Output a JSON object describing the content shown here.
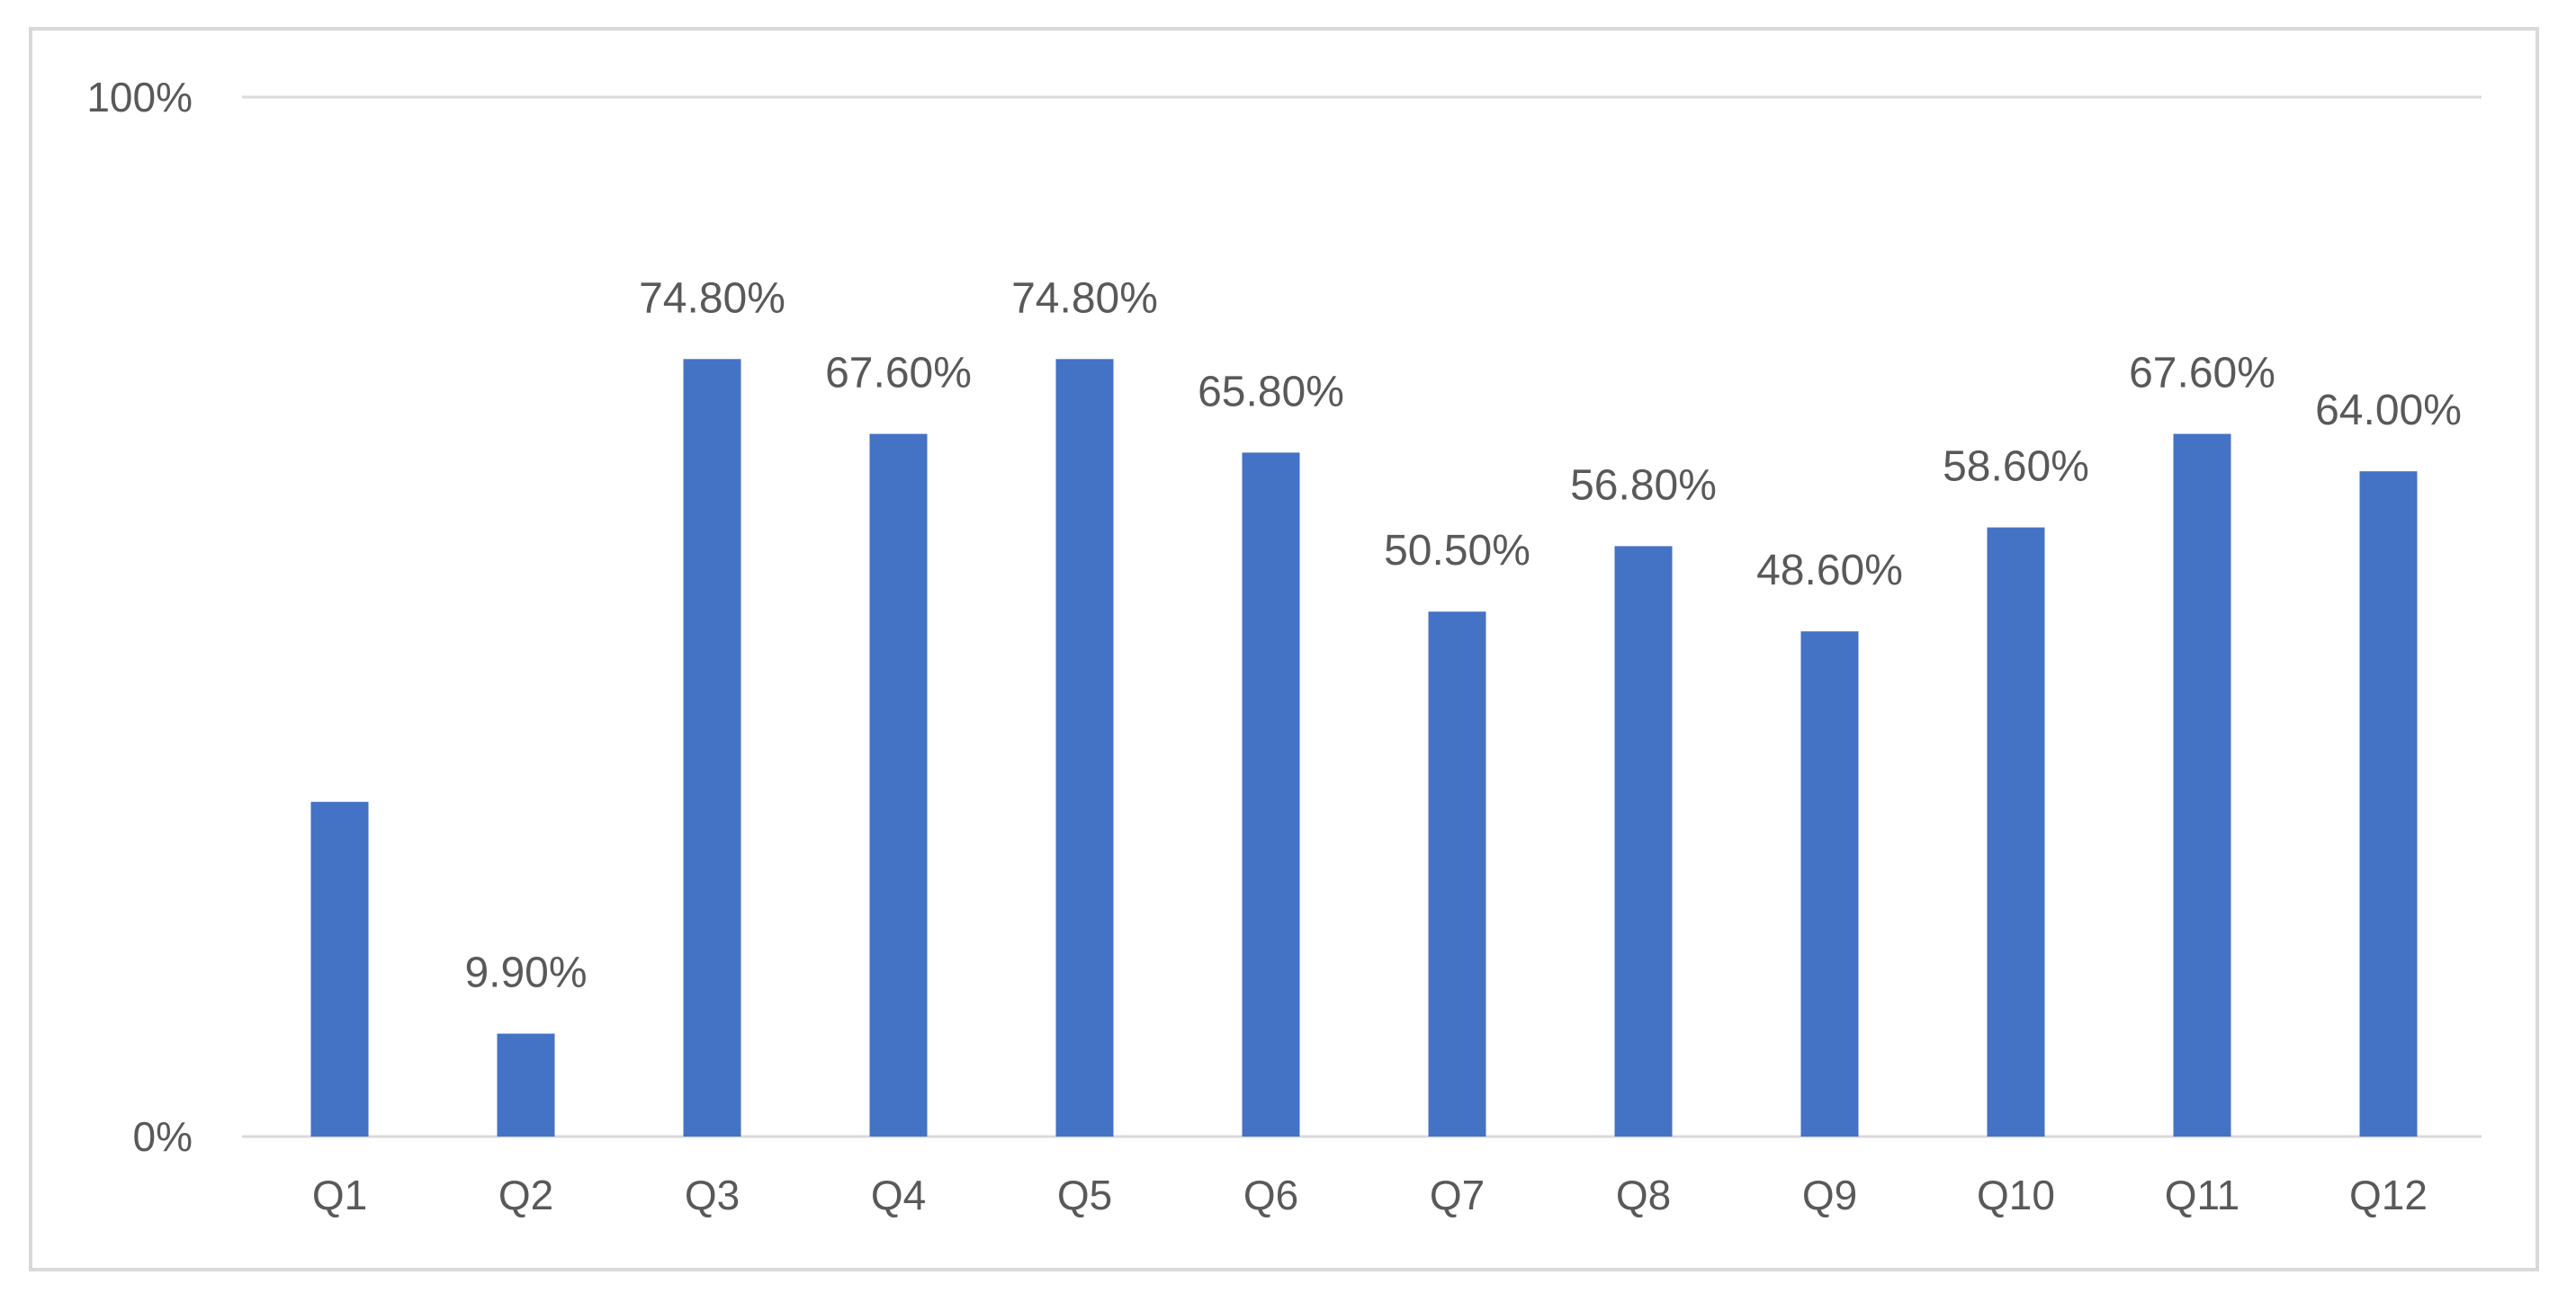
{
  "chart_data": {
    "type": "bar",
    "title": "",
    "xlabel": "",
    "ylabel": "",
    "categories": [
      "Q1",
      "Q2",
      "Q3",
      "Q4",
      "Q5",
      "Q6",
      "Q7",
      "Q8",
      "Q9",
      "Q10",
      "Q11",
      "Q12"
    ],
    "values": [
      32.2,
      9.9,
      74.8,
      67.6,
      74.8,
      65.8,
      50.5,
      56.8,
      48.6,
      58.6,
      67.6,
      64.0
    ],
    "data_labels": [
      "",
      "9.90%",
      "74.80%",
      "67.60%",
      "74.80%",
      "65.80%",
      "50.50%",
      "56.80%",
      "48.60%",
      "58.60%",
      "67.60%",
      "64.00%"
    ],
    "ylim": [
      0,
      100
    ],
    "y_ticks": [
      0,
      100
    ],
    "y_tick_labels": [
      "0%",
      "100%"
    ],
    "grid": true,
    "legend": "none",
    "bar_color": "#4472C4",
    "gridline_color": "#d9d9d9"
  }
}
